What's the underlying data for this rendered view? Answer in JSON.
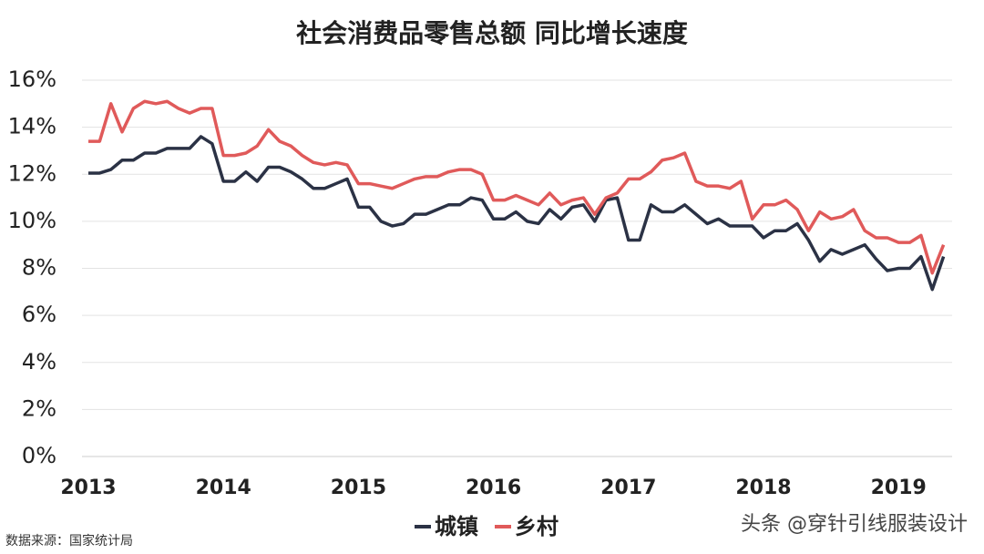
{
  "chart_data": {
    "type": "line",
    "title": "社会消费品零售总额 同比增长速度",
    "categories": [
      "2013",
      null,
      null,
      null,
      null,
      null,
      null,
      null,
      null,
      null,
      null,
      null,
      "2014",
      null,
      null,
      null,
      null,
      null,
      null,
      null,
      null,
      null,
      null,
      null,
      "2015",
      null,
      null,
      null,
      null,
      null,
      null,
      null,
      null,
      null,
      null,
      null,
      "2016",
      null,
      null,
      null,
      null,
      null,
      null,
      null,
      null,
      null,
      null,
      null,
      "2017",
      null,
      null,
      null,
      null,
      null,
      null,
      null,
      null,
      null,
      null,
      null,
      "2018",
      null,
      null,
      null,
      null,
      null,
      null,
      null,
      null,
      null,
      null,
      null,
      "2019",
      null,
      null,
      null,
      null
    ],
    "series": [
      {
        "name": "城镇",
        "color": "#2b3245",
        "values": [
          12.05,
          12.05,
          12.2,
          12.6,
          12.6,
          12.9,
          12.9,
          13.1,
          13.1,
          13.1,
          13.6,
          13.3,
          11.7,
          11.7,
          12.1,
          11.7,
          12.3,
          12.3,
          12.1,
          11.8,
          11.4,
          11.4,
          11.6,
          11.8,
          10.6,
          10.6,
          10.0,
          9.8,
          9.9,
          10.3,
          10.3,
          10.5,
          10.7,
          10.7,
          11.0,
          10.9,
          10.1,
          10.1,
          10.4,
          10.0,
          9.9,
          10.5,
          10.1,
          10.6,
          10.7,
          10.0,
          10.9,
          11.0,
          9.2,
          9.2,
          10.7,
          10.4,
          10.4,
          10.7,
          10.3,
          9.9,
          10.1,
          9.8,
          9.8,
          9.8,
          9.3,
          9.6,
          9.6,
          9.9,
          9.2,
          8.3,
          8.8,
          8.6,
          8.8,
          9.0,
          8.4,
          7.9,
          8.0,
          8.0,
          8.5,
          7.1,
          8.5
        ]
      },
      {
        "name": "乡村",
        "color": "#e05a5a",
        "values": [
          13.4,
          13.4,
          15.0,
          13.8,
          14.8,
          15.1,
          15.0,
          15.1,
          14.8,
          14.6,
          14.8,
          14.8,
          12.8,
          12.8,
          12.9,
          13.2,
          13.9,
          13.4,
          13.2,
          12.8,
          12.5,
          12.4,
          12.5,
          12.4,
          11.6,
          11.6,
          11.5,
          11.4,
          11.6,
          11.8,
          11.9,
          11.9,
          12.1,
          12.2,
          12.2,
          12.0,
          10.9,
          10.9,
          11.1,
          10.9,
          10.7,
          11.2,
          10.7,
          10.9,
          11.0,
          10.3,
          11.0,
          11.2,
          11.8,
          11.8,
          12.1,
          12.6,
          12.7,
          12.9,
          11.7,
          11.5,
          11.5,
          11.4,
          11.7,
          10.1,
          10.7,
          10.7,
          10.9,
          10.5,
          9.6,
          10.4,
          10.1,
          10.2,
          10.5,
          9.6,
          9.3,
          9.3,
          9.1,
          9.1,
          9.4,
          7.8,
          9.0
        ]
      }
    ],
    "ylim": [
      0,
      16
    ],
    "yticks": [
      {
        "value": 0,
        "label": "0%"
      },
      {
        "value": 2,
        "label": "2%"
      },
      {
        "value": 4,
        "label": "4%"
      },
      {
        "value": 6,
        "label": "6%"
      },
      {
        "value": 8,
        "label": "8%"
      },
      {
        "value": 10,
        "label": "10%"
      },
      {
        "value": 12,
        "label": "12%"
      },
      {
        "value": 14,
        "label": "14%"
      },
      {
        "value": 16,
        "label": "16%"
      }
    ],
    "grid": true,
    "source": "数据来源：国家统计局",
    "watermark": "头条 @穿针引线服装设计"
  }
}
